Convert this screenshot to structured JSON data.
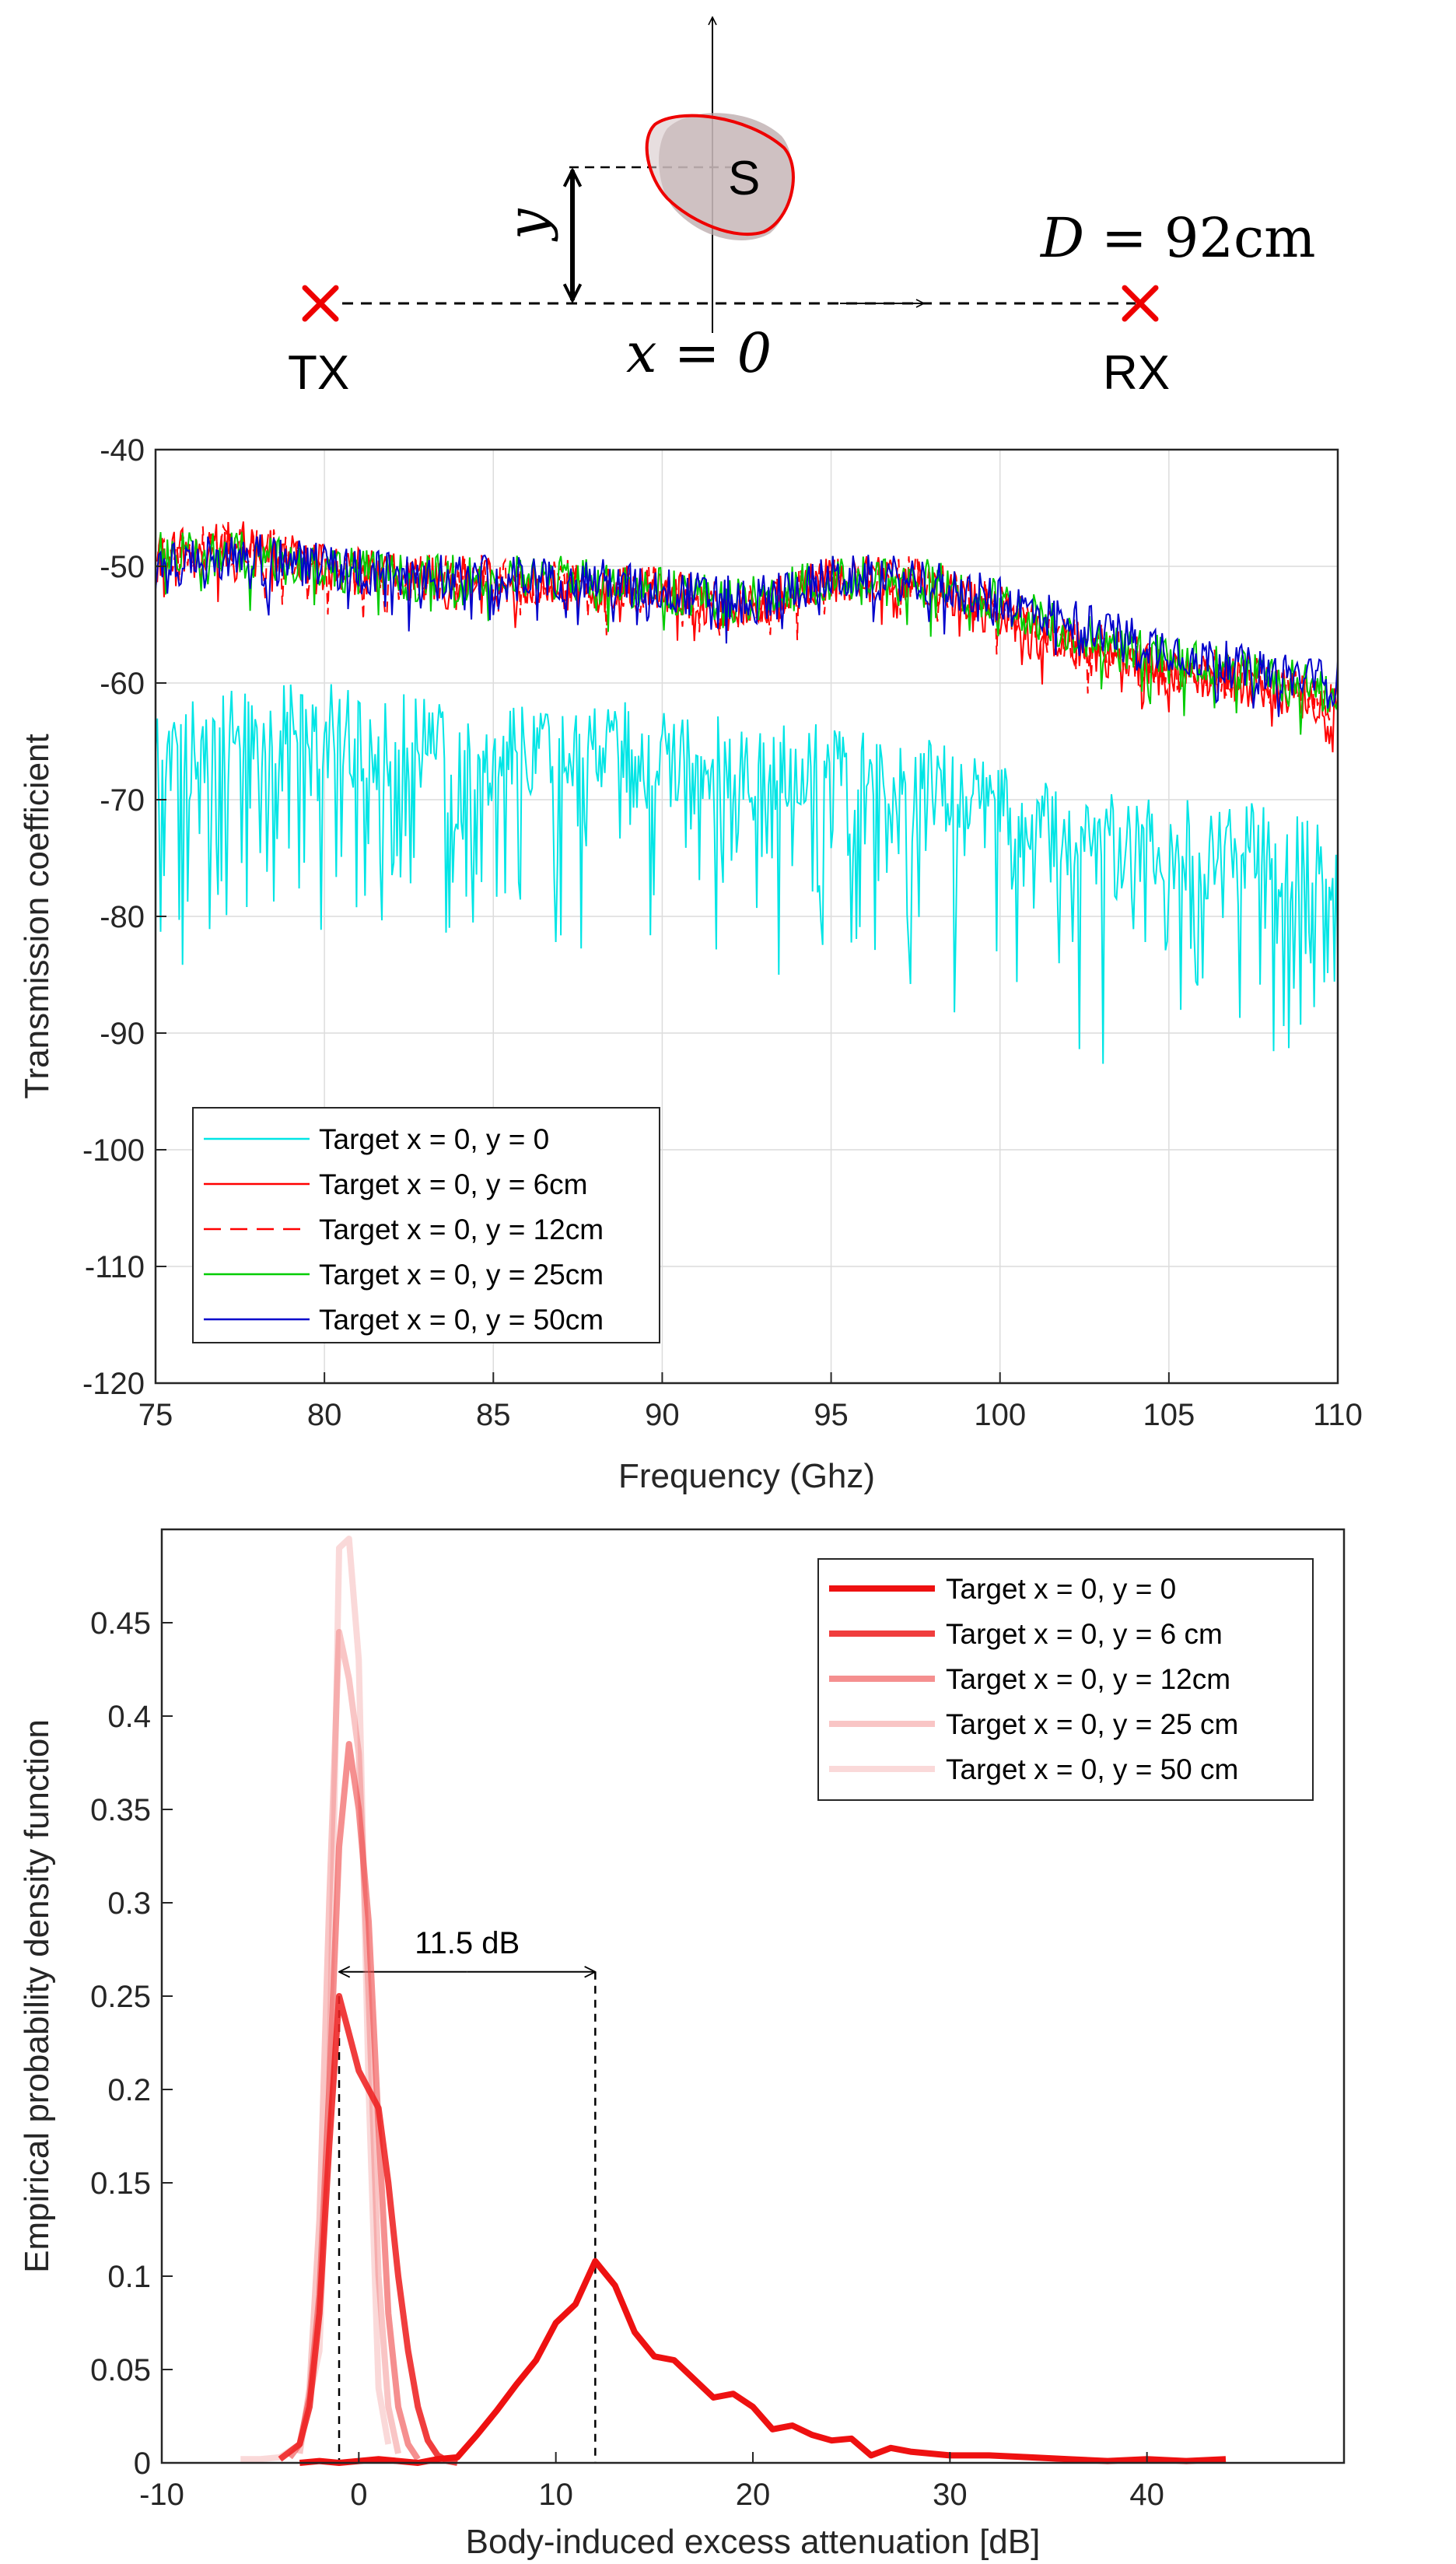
{
  "diagram": {
    "tx_label": "TX",
    "rx_label": "RX",
    "target_label": "S",
    "y_symbol": "y",
    "x_eq": "x = 0",
    "d_var": "D",
    "d_eq": "= 92cm"
  },
  "chart_data": [
    {
      "type": "line",
      "xlabel": "Frequency (Ghz)",
      "ylabel": "Transmission coefficient",
      "xlim": [
        75,
        110
      ],
      "ylim": [
        -120,
        -40
      ],
      "xticks": [
        "75",
        "80",
        "85",
        "90",
        "95",
        "100",
        "105",
        "110"
      ],
      "yticks": [
        "-40",
        "-50",
        "-60",
        "-70",
        "-80",
        "-90",
        "-100",
        "-110",
        "-120"
      ],
      "grid": true,
      "legend_position": "bottom-left",
      "series": [
        {
          "name": "Target x = 0, y = 0",
          "color": "#00e5e5",
          "style": "solid",
          "x": [
            75,
            77.5,
            80,
            82.5,
            85,
            87.5,
            90,
            92.5,
            95,
            97.5,
            100,
            102.5,
            105,
            107.5,
            110
          ],
          "y": [
            -66,
            -64,
            -64,
            -65,
            -65,
            -65,
            -66,
            -67,
            -67,
            -68,
            -71,
            -73,
            -74,
            -74,
            -76
          ]
        },
        {
          "name": "Target x = 0, y = 6cm",
          "color": "#ff0000",
          "style": "solid",
          "x": [
            75,
            77.5,
            80,
            82.5,
            85,
            87.5,
            90,
            92.5,
            95,
            97.5,
            100,
            102.5,
            105,
            107.5,
            110
          ],
          "y": [
            -49,
            -48,
            -50,
            -51,
            -51,
            -52,
            -52,
            -54,
            -51,
            -51,
            -54,
            -57,
            -59,
            -60,
            -62
          ]
        },
        {
          "name": "Target x = 0, y = 12cm",
          "color": "#ff0000",
          "style": "dashed",
          "x": [
            75,
            77.5,
            80,
            82.5,
            85,
            87.5,
            90,
            92.5,
            95,
            97.5,
            100,
            102.5,
            105,
            107.5,
            110
          ],
          "y": [
            -49,
            -48,
            -50,
            -51,
            -51,
            -51.5,
            -52,
            -53.5,
            -51,
            -51,
            -53.5,
            -56.5,
            -58.5,
            -59.5,
            -61.5
          ]
        },
        {
          "name": "Target x = 0, y = 25cm",
          "color": "#00cc00",
          "style": "solid",
          "x": [
            75,
            77.5,
            80,
            82.5,
            85,
            87.5,
            90,
            92.5,
            95,
            97.5,
            100,
            102.5,
            105,
            107.5,
            110
          ],
          "y": [
            -49,
            -49,
            -50,
            -51,
            -51,
            -51,
            -52,
            -53,
            -51,
            -51,
            -53,
            -56,
            -58,
            -59,
            -61
          ]
        },
        {
          "name": "Target x = 0, y = 50cm",
          "color": "#0000cc",
          "style": "solid",
          "x": [
            75,
            77.5,
            80,
            82.5,
            85,
            87.5,
            90,
            92.5,
            95,
            97.5,
            100,
            102.5,
            105,
            107.5,
            110
          ],
          "y": [
            -50,
            -49,
            -50,
            -51,
            -51,
            -51,
            -52,
            -53,
            -51,
            -51,
            -53,
            -55,
            -57,
            -59,
            -60
          ]
        }
      ]
    },
    {
      "type": "line",
      "xlabel": "Body-induced excess attenuation [dB]",
      "ylabel": "Empirical probability density function",
      "xlim": [
        -10,
        50
      ],
      "ylim": [
        0,
        0.5
      ],
      "xticks": [
        "-10",
        "0",
        "10",
        "20",
        "30",
        "40"
      ],
      "yticks": [
        "0",
        "0.05",
        "0.1",
        "0.15",
        "0.2",
        "0.25",
        "0.3",
        "0.35",
        "0.4",
        "0.45"
      ],
      "grid": false,
      "legend_position": "top-right",
      "annotation": {
        "text": "11.5 dB",
        "from": -1,
        "to": 12
      },
      "series": [
        {
          "name": "Target x = 0, y = 0",
          "color": "#ee1111",
          "opacity": 1.0,
          "x": [
            -3,
            -2,
            -1,
            0,
            1,
            2,
            3,
            4,
            5,
            6,
            7,
            8,
            9,
            10,
            11,
            12,
            13,
            14,
            15,
            16,
            17,
            18,
            19,
            20,
            21,
            22,
            23,
            24,
            25,
            26,
            27,
            28,
            30,
            32,
            34,
            36,
            38,
            40,
            42,
            44
          ],
          "y": [
            0,
            0.001,
            0,
            0.001,
            0.002,
            0.001,
            0,
            0.002,
            0.003,
            0.015,
            0.028,
            0.042,
            0.055,
            0.075,
            0.085,
            0.108,
            0.095,
            0.07,
            0.057,
            0.055,
            0.045,
            0.035,
            0.037,
            0.03,
            0.018,
            0.02,
            0.015,
            0.012,
            0.013,
            0.004,
            0.008,
            0.006,
            0.004,
            0.004,
            0.003,
            0.002,
            0.001,
            0.002,
            0.001,
            0.002
          ]
        },
        {
          "name": "Target x = 0, y = 6 cm",
          "color": "#ee2222",
          "opacity": 0.88,
          "x": [
            -4,
            -3,
            -2.5,
            -2,
            -1.5,
            -1,
            -0.5,
            0,
            0.5,
            1,
            1.5,
            2,
            2.5,
            3,
            3.5,
            4,
            4.5,
            5
          ],
          "y": [
            0.002,
            0.01,
            0.03,
            0.08,
            0.17,
            0.25,
            0.23,
            0.21,
            0.2,
            0.19,
            0.15,
            0.1,
            0.06,
            0.03,
            0.012,
            0.004,
            0.001,
            0
          ]
        },
        {
          "name": "Target x = 0, y = 12cm",
          "color": "#ee4444",
          "opacity": 0.6,
          "x": [
            -3.5,
            -3,
            -2.5,
            -2,
            -1.5,
            -1,
            -0.5,
            0,
            0.5,
            1,
            1.5,
            2,
            2.5,
            3
          ],
          "y": [
            0.003,
            0.01,
            0.035,
            0.09,
            0.2,
            0.33,
            0.385,
            0.35,
            0.29,
            0.18,
            0.08,
            0.03,
            0.01,
            0.002
          ]
        },
        {
          "name": "Target x = 0, y = 25 cm",
          "color": "#ee6666",
          "opacity": 0.38,
          "x": [
            -3,
            -2.5,
            -2,
            -1.5,
            -1,
            -0.5,
            0,
            0.5,
            1,
            1.5,
            2
          ],
          "y": [
            0.005,
            0.04,
            0.13,
            0.3,
            0.445,
            0.42,
            0.38,
            0.25,
            0.1,
            0.03,
            0.005
          ]
        },
        {
          "name": "Target x = 0, y = 50 cm",
          "color": "#ee7777",
          "opacity": 0.28,
          "x": [
            -6,
            -5,
            -4,
            -3,
            -2,
            -1.5,
            -1,
            -0.5,
            0,
            0.5,
            1,
            1.5
          ],
          "y": [
            0.002,
            0.002,
            0.003,
            0.01,
            0.06,
            0.2,
            0.49,
            0.495,
            0.43,
            0.2,
            0.04,
            0.01
          ]
        }
      ]
    }
  ]
}
